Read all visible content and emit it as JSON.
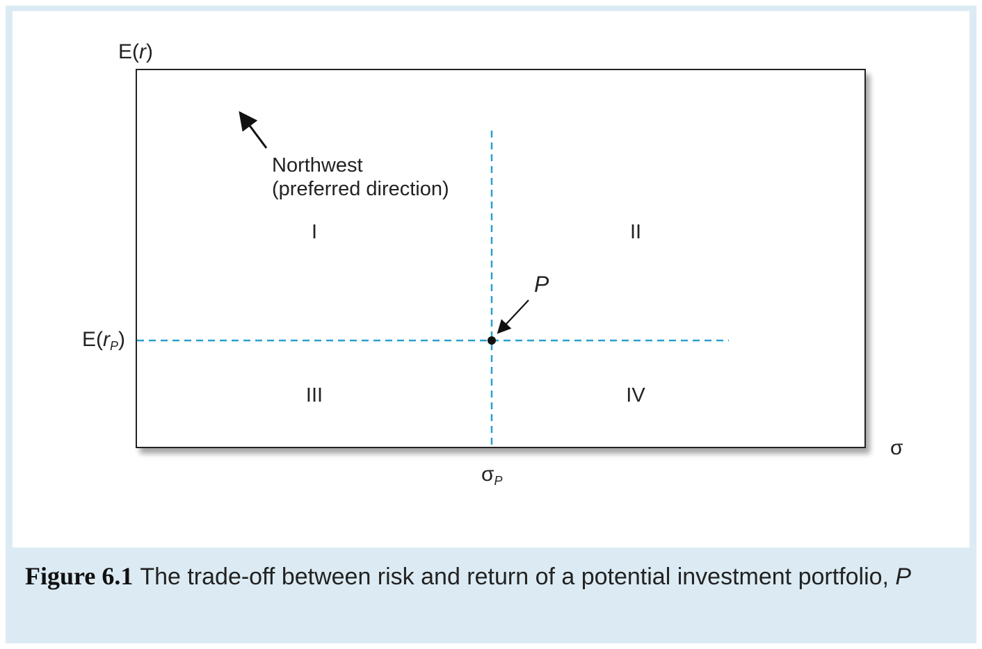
{
  "figure": {
    "y_axis_label": {
      "prefix": "E(",
      "var": "r",
      "suffix": ")"
    },
    "x_axis_label": "σ",
    "point_label": "P",
    "y_ref_label": {
      "prefix": "E(",
      "var": "r",
      "sub": "P",
      "suffix": ")"
    },
    "x_ref_label": {
      "sym": "σ",
      "sub": "P"
    },
    "direction_label_line1": "Northwest",
    "direction_label_line2": "(preferred direction)",
    "quadrants": {
      "q1": "I",
      "q2": "II",
      "q3": "III",
      "q4": "IV"
    },
    "colors": {
      "dashed": "#2a9fd0",
      "border": "#222222",
      "panel": "#dcebf3"
    }
  },
  "caption": {
    "label": "Figure 6.1",
    "text": "The trade-off between risk and return of a potential investment portfolio, ",
    "emph": "P"
  }
}
